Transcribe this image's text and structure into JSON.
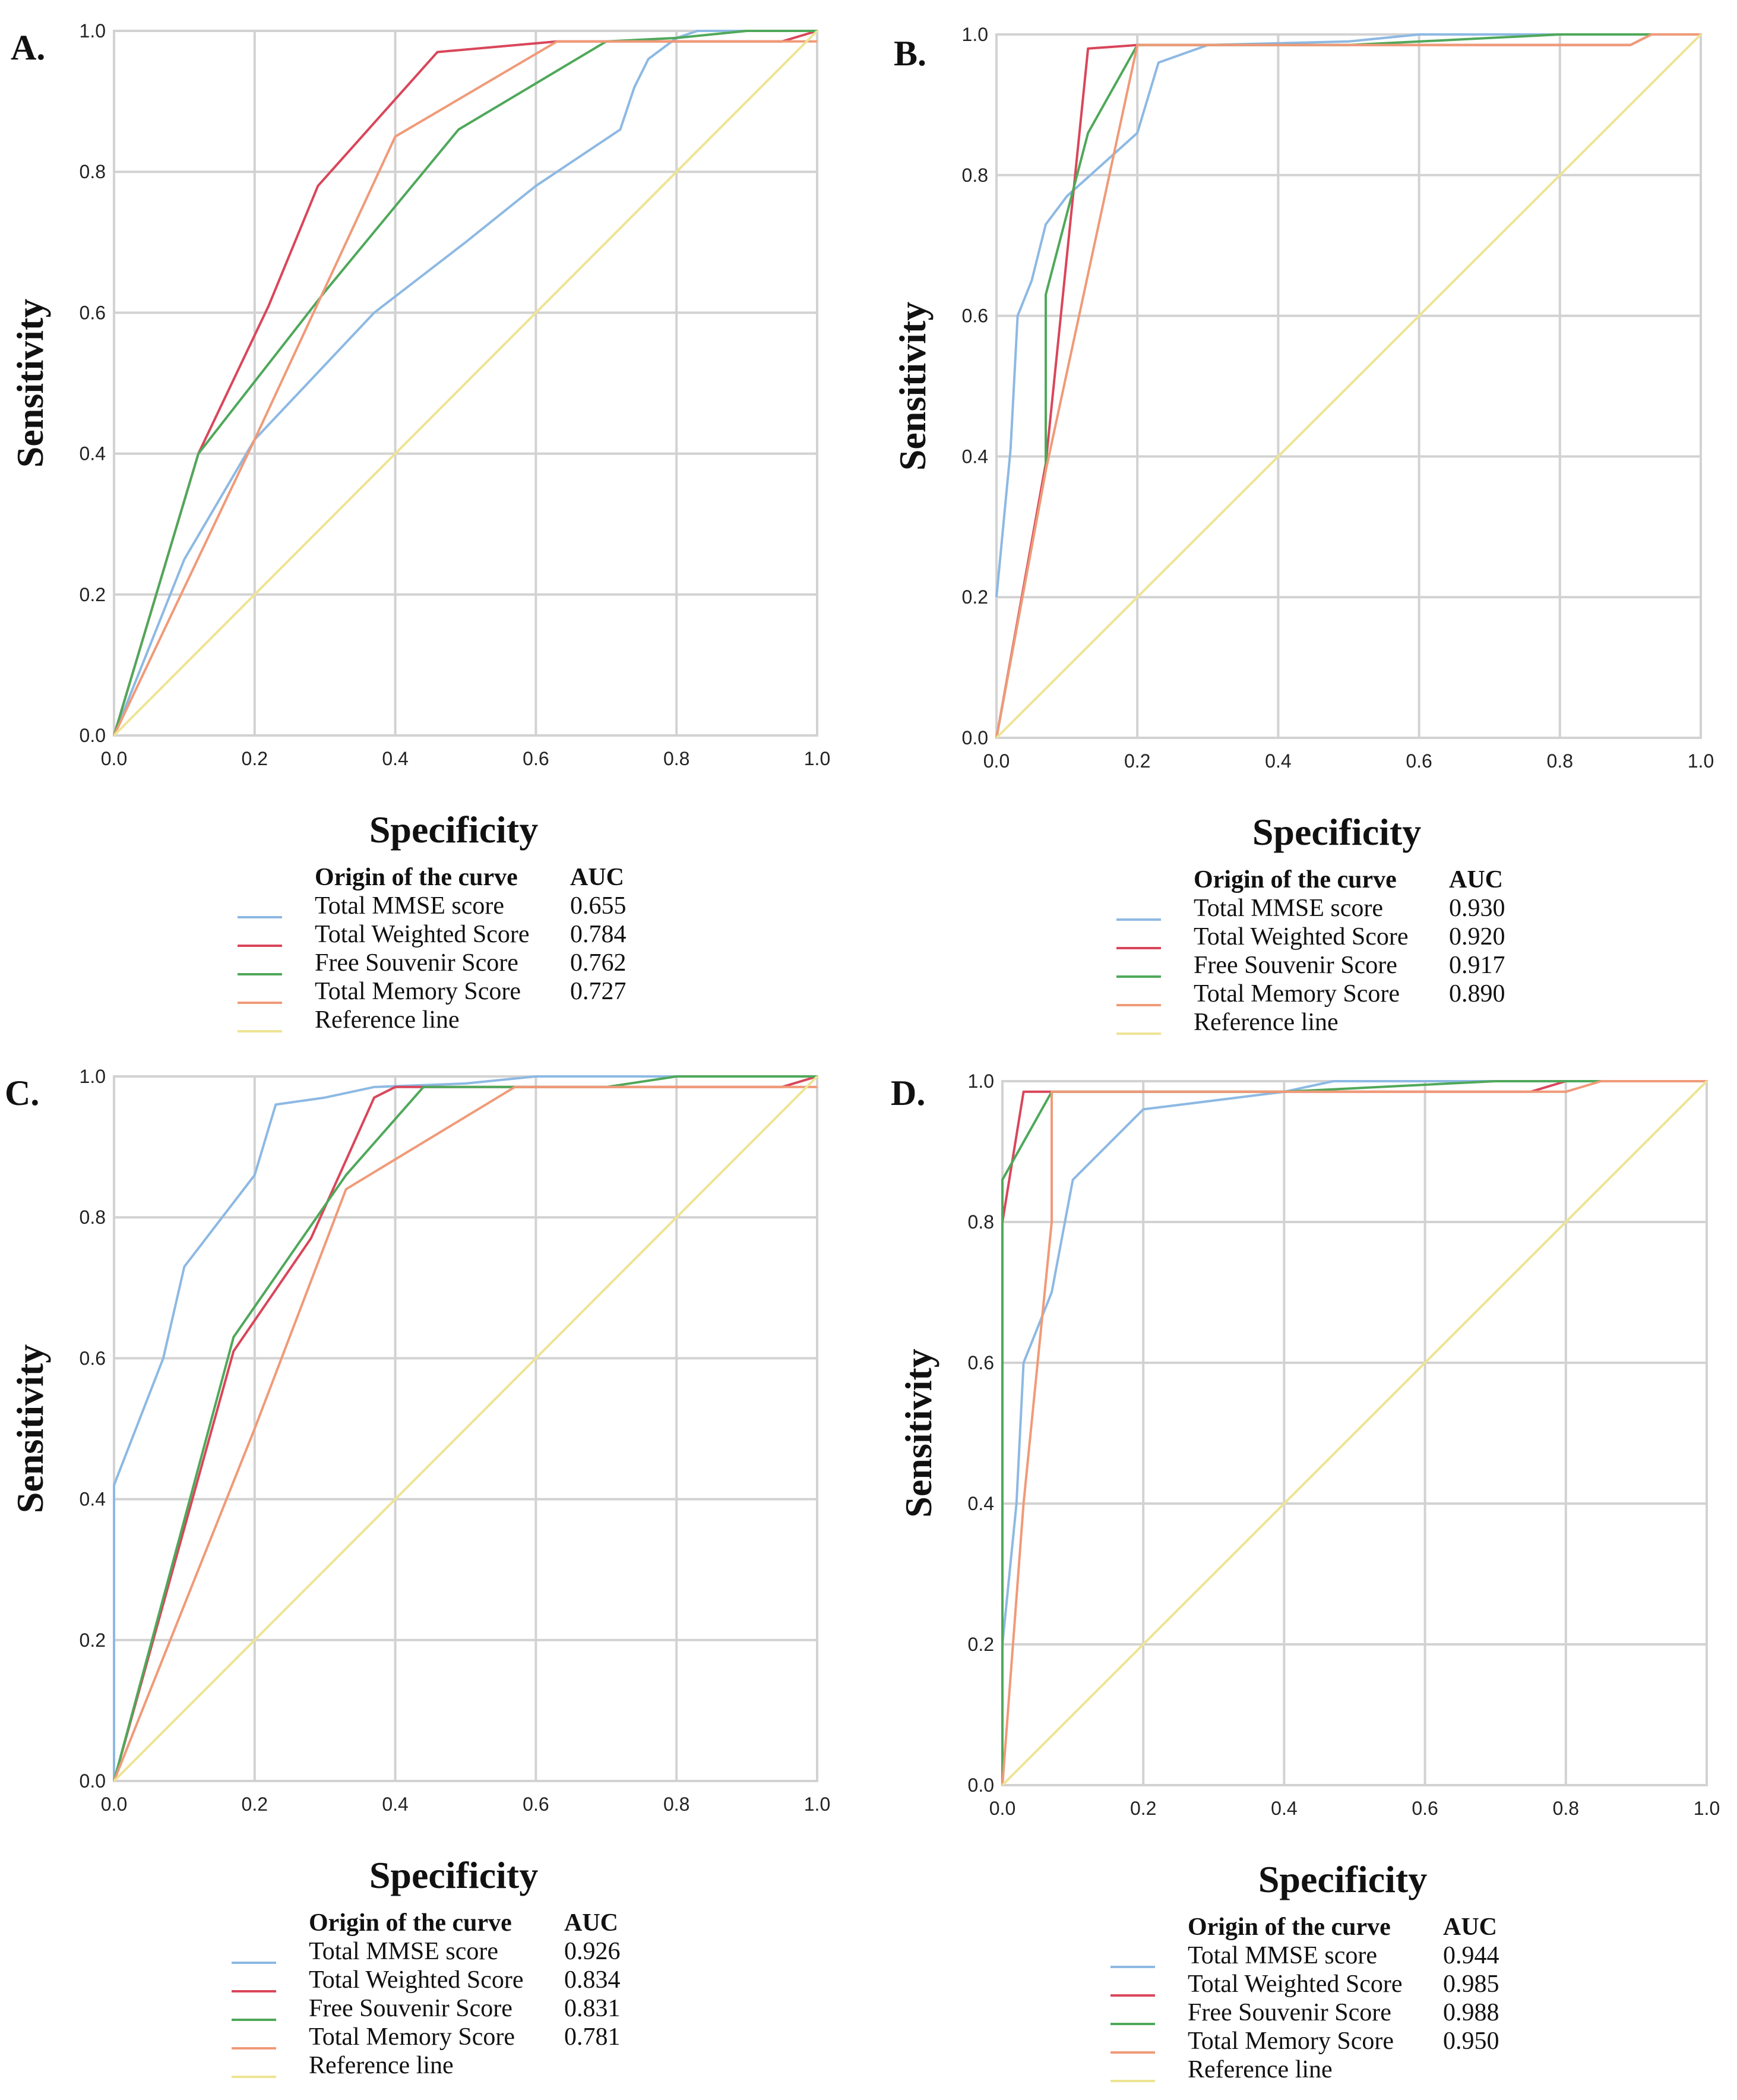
{
  "series_colors": {
    "Total MMSE score": "#8db9e3",
    "Total Weighted Score": "#d9465a",
    "Free Souvenir Score": "#4fa85a",
    "Total Memory Score": "#f09a78",
    "Reference line": "#eee494"
  },
  "chart_data": [
    {
      "type": "line",
      "panel": "A.",
      "xlabel": "Specificity",
      "ylabel": "Sensitivity",
      "xlim": [
        0,
        1
      ],
      "ylim": [
        0,
        1
      ],
      "ticks": [
        "0.0",
        "0.2",
        "0.4",
        "0.6",
        "0.8",
        "1.0"
      ],
      "legend_header": {
        "origin": "Origin of the curve",
        "auc": "AUC"
      },
      "series": [
        {
          "name": "Total MMSE score",
          "auc": "0.655",
          "x": [
            0,
            0.1,
            0.2,
            0.37,
            0.5,
            0.6,
            0.72,
            0.74,
            0.76,
            0.8,
            0.83,
            1.0
          ],
          "y": [
            0,
            0.25,
            0.42,
            0.6,
            0.7,
            0.78,
            0.86,
            0.92,
            0.96,
            0.99,
            1.0,
            1.0
          ]
        },
        {
          "name": "Total Weighted Score",
          "auc": "0.784",
          "x": [
            0,
            0.12,
            0.22,
            0.29,
            0.46,
            0.63,
            0.95,
            1.0
          ],
          "y": [
            0,
            0.4,
            0.61,
            0.78,
            0.97,
            0.985,
            0.985,
            1.0
          ]
        },
        {
          "name": "Free Souvenir Score",
          "auc": "0.762",
          "x": [
            0,
            0.12,
            0.3,
            0.49,
            0.7,
            0.8,
            0.9,
            1.0
          ],
          "y": [
            0,
            0.4,
            0.63,
            0.86,
            0.985,
            0.99,
            1.0,
            1.0
          ]
        },
        {
          "name": "Total Memory Score",
          "auc": "0.727",
          "x": [
            0,
            0.2,
            0.4,
            0.63,
            1.0
          ],
          "y": [
            0,
            0.42,
            0.85,
            0.985,
            0.985
          ]
        },
        {
          "name": "Reference line",
          "auc": "",
          "x": [
            0,
            1
          ],
          "y": [
            0,
            1
          ]
        }
      ]
    },
    {
      "type": "line",
      "panel": "B.",
      "xlabel": "Specificity",
      "ylabel": "Sensitivity",
      "xlim": [
        0,
        1
      ],
      "ylim": [
        0,
        1
      ],
      "ticks": [
        "0.0",
        "0.2",
        "0.4",
        "0.6",
        "0.8",
        "1.0"
      ],
      "legend_header": {
        "origin": "Origin of the curve",
        "auc": "AUC"
      },
      "series": [
        {
          "name": "Total MMSE score",
          "auc": "0.930",
          "x": [
            0,
            0.02,
            0.03,
            0.05,
            0.07,
            0.1,
            0.2,
            0.23,
            0.3,
            0.5,
            0.6,
            0.8,
            1.0
          ],
          "y": [
            0.2,
            0.41,
            0.6,
            0.65,
            0.73,
            0.77,
            0.86,
            0.96,
            0.985,
            0.99,
            1.0,
            1.0,
            1.0
          ]
        },
        {
          "name": "Total Weighted Score",
          "auc": "0.920",
          "x": [
            0,
            0.07,
            0.13,
            0.2,
            0.9,
            0.93,
            1.0
          ],
          "y": [
            0,
            0.39,
            0.98,
            0.985,
            0.985,
            1.0,
            1.0
          ]
        },
        {
          "name": "Free Souvenir Score",
          "auc": "0.917",
          "x": [
            0,
            0.07,
            0.07,
            0.13,
            0.2,
            0.5,
            0.8,
            1.0
          ],
          "y": [
            0,
            0.38,
            0.63,
            0.86,
            0.985,
            0.985,
            1.0,
            1.0
          ]
        },
        {
          "name": "Total Memory Score",
          "auc": "0.890",
          "x": [
            0,
            0.07,
            0.2,
            0.9,
            0.93,
            1.0
          ],
          "y": [
            0,
            0.38,
            0.985,
            0.985,
            1.0,
            1.0
          ]
        },
        {
          "name": "Reference line",
          "auc": "",
          "x": [
            0,
            1
          ],
          "y": [
            0,
            1
          ]
        }
      ]
    },
    {
      "type": "line",
      "panel": "C.",
      "xlabel": "Specificity",
      "ylabel": "Sensitivity",
      "xlim": [
        0,
        1
      ],
      "ylim": [
        0,
        1
      ],
      "ticks": [
        "0.0",
        "0.2",
        "0.4",
        "0.6",
        "0.8",
        "1.0"
      ],
      "legend_header": {
        "origin": "Origin of the curve",
        "auc": "AUC"
      },
      "series": [
        {
          "name": "Total MMSE score",
          "auc": "0.926",
          "x": [
            0,
            0,
            0.07,
            0.1,
            0.2,
            0.23,
            0.3,
            0.37,
            0.5,
            0.6,
            0.8,
            1.0
          ],
          "y": [
            0,
            0.42,
            0.6,
            0.73,
            0.86,
            0.96,
            0.97,
            0.985,
            0.99,
            1.0,
            1.0,
            1.0
          ]
        },
        {
          "name": "Total Weighted Score",
          "auc": "0.834",
          "x": [
            0,
            0.17,
            0.28,
            0.37,
            0.4,
            0.95,
            1.0
          ],
          "y": [
            0,
            0.61,
            0.77,
            0.97,
            0.985,
            0.985,
            1.0
          ]
        },
        {
          "name": "Free Souvenir Score",
          "auc": "0.831",
          "x": [
            0,
            0.17,
            0.33,
            0.44,
            0.7,
            0.8,
            1.0
          ],
          "y": [
            0,
            0.63,
            0.86,
            0.985,
            0.985,
            1.0,
            1.0
          ]
        },
        {
          "name": "Total Memory Score",
          "auc": "0.781",
          "x": [
            0,
            0.2,
            0.33,
            0.57,
            1.0
          ],
          "y": [
            0,
            0.5,
            0.84,
            0.985,
            0.985
          ]
        },
        {
          "name": "Reference line",
          "auc": "",
          "x": [
            0,
            1
          ],
          "y": [
            0,
            1
          ]
        }
      ]
    },
    {
      "type": "line",
      "panel": "D.",
      "xlabel": "Specificity",
      "ylabel": "Sensitivity",
      "xlim": [
        0,
        1
      ],
      "ylim": [
        0,
        1
      ],
      "ticks": [
        "0.0",
        "0.2",
        "0.4",
        "0.6",
        "0.8",
        "1.0"
      ],
      "legend_header": {
        "origin": "Origin of the curve",
        "auc": "AUC"
      },
      "series": [
        {
          "name": "Total MMSE score",
          "auc": "0.944",
          "x": [
            0,
            0.02,
            0.03,
            0.07,
            0.1,
            0.2,
            0.4,
            0.47,
            0.6,
            0.8,
            1.0
          ],
          "y": [
            0.2,
            0.4,
            0.6,
            0.7,
            0.86,
            0.96,
            0.985,
            1.0,
            1.0,
            1.0,
            1.0
          ]
        },
        {
          "name": "Total Weighted Score",
          "auc": "0.985",
          "x": [
            0,
            0,
            0.03,
            0.07,
            0.75,
            0.8,
            1.0
          ],
          "y": [
            0,
            0.8,
            0.985,
            0.985,
            0.985,
            1.0,
            1.0
          ]
        },
        {
          "name": "Free Souvenir Score",
          "auc": "0.988",
          "x": [
            0,
            0,
            0.07,
            0.4,
            0.7,
            1.0
          ],
          "y": [
            0,
            0.86,
            0.985,
            0.985,
            1.0,
            1.0
          ]
        },
        {
          "name": "Total Memory Score",
          "auc": "0.950",
          "x": [
            0,
            0.03,
            0.07,
            0.07,
            0.8,
            0.85,
            1.0
          ],
          "y": [
            0,
            0.4,
            0.8,
            0.985,
            0.985,
            1.0,
            1.0
          ]
        },
        {
          "name": "Reference line",
          "auc": "",
          "x": [
            0,
            1
          ],
          "y": [
            0,
            1
          ]
        }
      ]
    }
  ]
}
